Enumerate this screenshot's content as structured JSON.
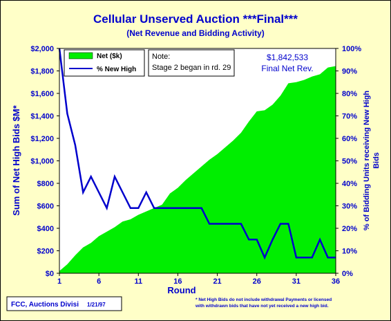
{
  "chart_data": {
    "type": "area",
    "title": "Cellular Unserved Auction ***Final***",
    "subtitle": "(Net Revenue and Bidding Activity)",
    "xlabel": "Round",
    "ylabel_left": "Sum of Net High Bids $M*",
    "ylabel_right": "% of Bidding Units receiving New High Bids",
    "x_ticks": [
      1,
      6,
      11,
      16,
      21,
      26,
      31,
      36
    ],
    "y_left_ticks": [
      "$0",
      "$200",
      "$400",
      "$600",
      "$800",
      "$1,000",
      "$1,200",
      "$1,400",
      "$1,600",
      "$1,800",
      "$2,000"
    ],
    "y_right_ticks": [
      "0%",
      "10%",
      "20%",
      "30%",
      "40%",
      "50%",
      "60%",
      "70%",
      "80%",
      "90%",
      "100%"
    ],
    "ylim_left": [
      0,
      2000
    ],
    "ylim_right": [
      0,
      100
    ],
    "xlim": [
      1,
      36
    ],
    "legend": {
      "position": "top-left",
      "entries": [
        "Net ($k)",
        "% New High"
      ]
    },
    "series": [
      {
        "name": "Net ($k)",
        "kind": "area",
        "color": "#00ee00",
        "x": [
          1,
          2,
          3,
          4,
          5,
          6,
          7,
          8,
          9,
          10,
          11,
          12,
          13,
          14,
          15,
          16,
          17,
          18,
          19,
          20,
          21,
          22,
          23,
          24,
          25,
          26,
          27,
          28,
          29,
          30,
          31,
          32,
          33,
          34,
          35,
          36
        ],
        "values": [
          20,
          80,
          160,
          230,
          270,
          330,
          370,
          410,
          460,
          480,
          520,
          550,
          580,
          610,
          710,
          760,
          830,
          890,
          950,
          1010,
          1060,
          1120,
          1180,
          1250,
          1350,
          1440,
          1450,
          1500,
          1580,
          1690,
          1700,
          1720,
          1750,
          1770,
          1830,
          1843
        ]
      },
      {
        "name": "% New High",
        "kind": "line",
        "color": "#0000cc",
        "x": [
          1,
          2,
          3,
          4,
          5,
          6,
          7,
          8,
          9,
          10,
          11,
          12,
          13,
          14,
          15,
          16,
          17,
          18,
          19,
          20,
          21,
          22,
          23,
          24,
          25,
          26,
          27,
          28,
          29,
          30,
          31,
          32,
          33,
          34,
          35,
          36
        ],
        "values": [
          100,
          71,
          57,
          36,
          43,
          36,
          29,
          43,
          36,
          29,
          29,
          36,
          29,
          29,
          29,
          29,
          29,
          29,
          29,
          22,
          22,
          22,
          22,
          22,
          15,
          15,
          7,
          15,
          22,
          22,
          7,
          7,
          7,
          15,
          7,
          7
        ]
      }
    ]
  },
  "annotation_note": {
    "line1": "Note:",
    "line2": "Stage 2 began in rd. 29"
  },
  "annotation_final": {
    "value": "$1,842,533",
    "label": "Final Net Rev."
  },
  "footer": {
    "source": "FCC, Auctions Divisi",
    "date": "1/21/97",
    "footnote_line1": "* Net High Bids do not include withdrawal Payments or licensed",
    "footnote_line2": "with withdrawn bids that have not yet received a new high bid."
  },
  "colors": {
    "background": "#ffffc8",
    "plot": "#ffffff",
    "area": "#00ee00",
    "line": "#0000cc",
    "text": "#0000cc"
  }
}
